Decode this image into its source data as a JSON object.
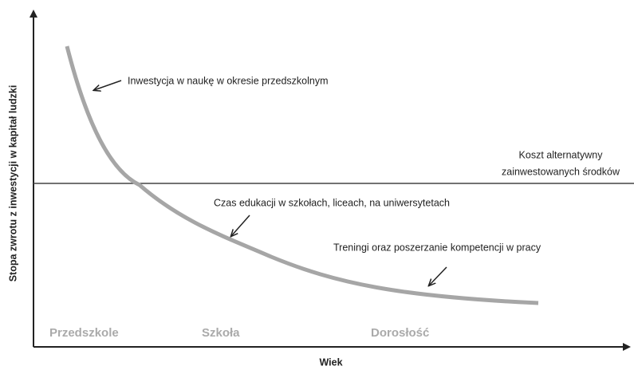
{
  "axes": {
    "y_label": "Stopa zwrotu z inwestycji w kapitał ludzki",
    "x_label": "Wiek"
  },
  "annotations": {
    "preschool": "Inwestycja w naukę w okresie przedszkolnym",
    "school": "Czas edukacji w szkołach, liceach, na uniwersytetach",
    "training": "Treningi oraz poszerzanie kompetencji w pracy",
    "cost_line_1": "Koszt alternatywny",
    "cost_line_2": "zainwestowanych środków"
  },
  "stages": [
    "Przedszkole",
    "Szkoła",
    "Dorosłość"
  ]
}
